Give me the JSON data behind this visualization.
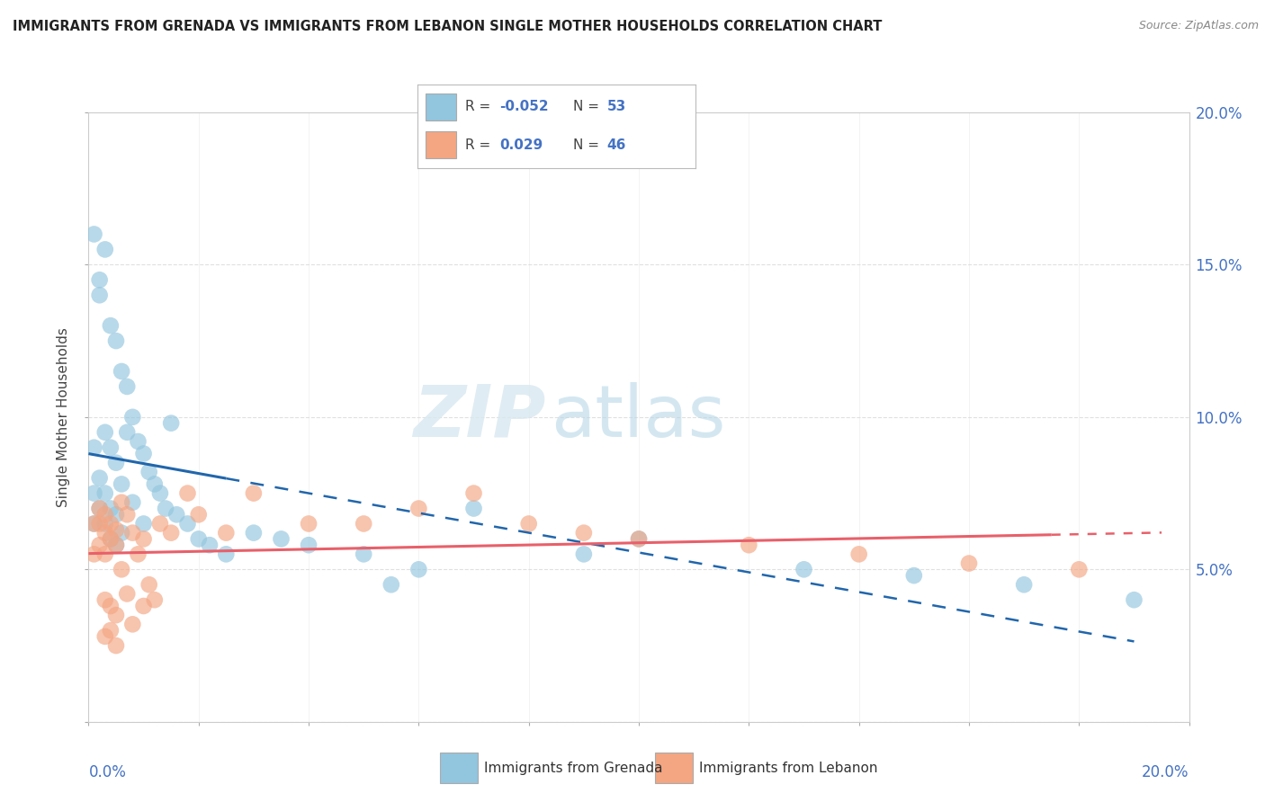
{
  "title": "IMMIGRANTS FROM GRENADA VS IMMIGRANTS FROM LEBANON SINGLE MOTHER HOUSEHOLDS CORRELATION CHART",
  "source": "Source: ZipAtlas.com",
  "ylabel": "Single Mother Households",
  "xlim": [
    0.0,
    0.2
  ],
  "ylim": [
    0.0,
    0.2
  ],
  "legend_blue_R": "-0.052",
  "legend_blue_N": "53",
  "legend_pink_R": "0.029",
  "legend_pink_N": "46",
  "blue_color": "#92c5de",
  "pink_color": "#f4a582",
  "blue_line_color": "#2166ac",
  "pink_line_color": "#e8606a",
  "watermark_zip": "ZIP",
  "watermark_atlas": "atlas",
  "background_color": "#ffffff",
  "grid_color": "#dddddd",
  "blue_x": [
    0.001,
    0.001,
    0.001,
    0.002,
    0.002,
    0.002,
    0.002,
    0.003,
    0.003,
    0.003,
    0.003,
    0.004,
    0.004,
    0.004,
    0.004,
    0.005,
    0.005,
    0.005,
    0.005,
    0.006,
    0.006,
    0.006,
    0.007,
    0.007,
    0.008,
    0.008,
    0.009,
    0.01,
    0.01,
    0.011,
    0.012,
    0.013,
    0.014,
    0.015,
    0.016,
    0.018,
    0.02,
    0.022,
    0.025,
    0.03,
    0.035,
    0.04,
    0.05,
    0.055,
    0.06,
    0.07,
    0.09,
    0.1,
    0.13,
    0.15,
    0.17,
    0.19,
    0.001
  ],
  "blue_y": [
    0.09,
    0.075,
    0.065,
    0.145,
    0.14,
    0.08,
    0.07,
    0.155,
    0.095,
    0.075,
    0.065,
    0.13,
    0.09,
    0.07,
    0.06,
    0.125,
    0.085,
    0.068,
    0.058,
    0.115,
    0.078,
    0.062,
    0.11,
    0.095,
    0.1,
    0.072,
    0.092,
    0.088,
    0.065,
    0.082,
    0.078,
    0.075,
    0.07,
    0.098,
    0.068,
    0.065,
    0.06,
    0.058,
    0.055,
    0.062,
    0.06,
    0.058,
    0.055,
    0.045,
    0.05,
    0.07,
    0.055,
    0.06,
    0.05,
    0.048,
    0.045,
    0.04,
    0.16
  ],
  "pink_x": [
    0.001,
    0.001,
    0.002,
    0.002,
    0.002,
    0.003,
    0.003,
    0.003,
    0.003,
    0.004,
    0.004,
    0.004,
    0.005,
    0.005,
    0.005,
    0.006,
    0.006,
    0.007,
    0.007,
    0.008,
    0.008,
    0.009,
    0.01,
    0.01,
    0.011,
    0.012,
    0.013,
    0.015,
    0.018,
    0.02,
    0.025,
    0.03,
    0.04,
    0.05,
    0.06,
    0.07,
    0.08,
    0.09,
    0.1,
    0.12,
    0.14,
    0.16,
    0.18,
    0.003,
    0.004,
    0.005
  ],
  "pink_y": [
    0.065,
    0.055,
    0.07,
    0.065,
    0.058,
    0.068,
    0.062,
    0.055,
    0.04,
    0.065,
    0.06,
    0.038,
    0.063,
    0.058,
    0.035,
    0.072,
    0.05,
    0.068,
    0.042,
    0.062,
    0.032,
    0.055,
    0.06,
    0.038,
    0.045,
    0.04,
    0.065,
    0.062,
    0.075,
    0.068,
    0.062,
    0.075,
    0.065,
    0.065,
    0.07,
    0.075,
    0.065,
    0.062,
    0.06,
    0.058,
    0.055,
    0.052,
    0.05,
    0.028,
    0.03,
    0.025
  ]
}
